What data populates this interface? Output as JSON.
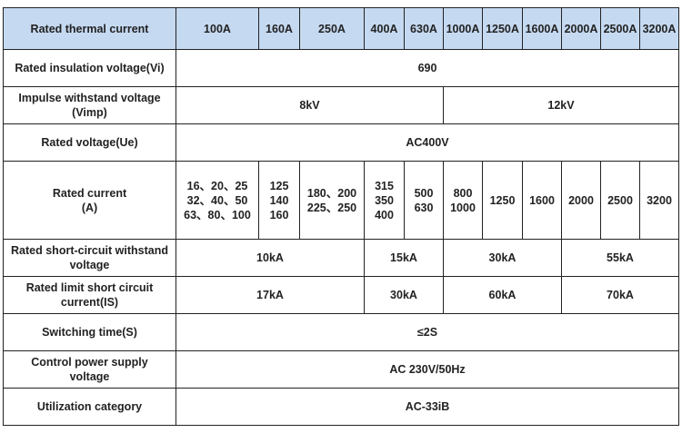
{
  "header": {
    "label": "Rated thermal current",
    "columns": [
      "100A",
      "160A",
      "250A",
      "400A",
      "630A",
      "1000A",
      "1250A",
      "1600A",
      "2000A",
      "2500A",
      "3200A"
    ]
  },
  "rows": {
    "vi": {
      "label": "Rated insulation voltage(Vi)",
      "value": "690"
    },
    "vimp": {
      "label_line1": "Impulse withstand voltage",
      "label_line2": "(Vimp)",
      "values": [
        "8kV",
        "12kV"
      ]
    },
    "ue": {
      "label": "Rated voltage(Ue)",
      "value": "AC400V"
    },
    "current": {
      "label_line1": "Rated current",
      "label_line2": "(A)",
      "values": [
        [
          "16、20、25",
          "32、40、50",
          "63、80、100"
        ],
        [
          "125",
          "140",
          "160"
        ],
        [
          "180、200",
          "225、250"
        ],
        [
          "315",
          "350",
          "400"
        ],
        [
          "500",
          "630"
        ],
        [
          "800",
          "1000"
        ],
        [
          "1250"
        ],
        [
          "1600"
        ],
        [
          "2000"
        ],
        [
          "2500"
        ],
        [
          "3200"
        ]
      ]
    },
    "short_circuit": {
      "label_line1": "Rated short-circuit withstand",
      "label_line2": "voltage",
      "values": [
        "10kA",
        "15kA",
        "30kA",
        "55kA"
      ]
    },
    "limit": {
      "label_line1": "Rated limit short circuit",
      "label_line2": "current(IS)",
      "values": [
        "17kA",
        "30kA",
        "60kA",
        "70kA"
      ]
    },
    "switching": {
      "label": "Switching time(S)",
      "value": "≤2S"
    },
    "control": {
      "label_line1": "Control power supply",
      "label_line2": "voltage",
      "value": "AC 230V/50Hz"
    },
    "utilization": {
      "label": "Utilization category",
      "value": "AC-33iB"
    }
  },
  "colors": {
    "header_bg": "#c5d9f1",
    "border": "#222222"
  }
}
